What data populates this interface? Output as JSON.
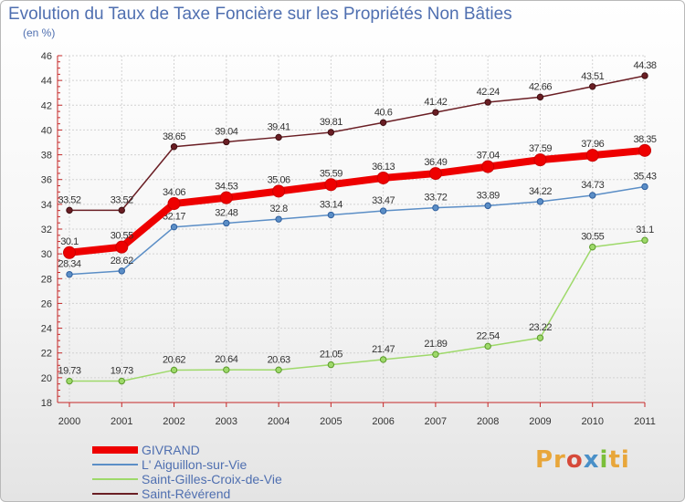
{
  "chart_data": {
    "type": "line",
    "title": "Evolution du Taux de Taxe Foncière sur les Propriétés Non Bâties",
    "ylabel": "(en %)",
    "xlabel": "",
    "ylim": [
      18,
      46
    ],
    "yticks": [
      18,
      20,
      22,
      24,
      26,
      28,
      30,
      32,
      34,
      36,
      38,
      40,
      42,
      44,
      46
    ],
    "categories": [
      "2000",
      "2001",
      "2002",
      "2003",
      "2004",
      "2005",
      "2006",
      "2007",
      "2008",
      "2009",
      "2010",
      "2011"
    ],
    "series": [
      {
        "name": "Saint-Révérend",
        "color": "#6a1e24",
        "values": [
          33.52,
          33.52,
          38.65,
          39.04,
          39.41,
          39.81,
          40.6,
          41.42,
          42.24,
          42.66,
          43.51,
          44.38
        ],
        "labels": [
          "33.52",
          "33.52",
          "38.65",
          "39.04",
          "39.41",
          "39.81",
          "40.6",
          "41.42",
          "42.24",
          "42.66",
          "43.51",
          "44.38"
        ]
      },
      {
        "name": "L' Aiguillon-sur-Vie",
        "color": "#5b8ec6",
        "values": [
          28.34,
          28.62,
          32.17,
          32.48,
          32.8,
          33.14,
          33.47,
          33.72,
          33.89,
          34.22,
          34.73,
          35.43
        ],
        "labels": [
          "28.34",
          "28.62",
          "32.17",
          "32.48",
          "32.8",
          "33.14",
          "33.47",
          "33.72",
          "33.89",
          "34.22",
          "34.73",
          "35.43"
        ]
      },
      {
        "name": "Saint-Gilles-Croix-de-Vie",
        "color": "#9ed96a",
        "values": [
          19.73,
          19.73,
          20.62,
          20.64,
          20.63,
          21.05,
          21.47,
          21.89,
          22.54,
          23.22,
          30.55,
          31.1
        ],
        "labels": [
          "19.73",
          "19.73",
          "20.62",
          "20.64",
          "20.63",
          "21.05",
          "21.47",
          "21.89",
          "22.54",
          "23.22",
          "30.55",
          "31.1"
        ]
      },
      {
        "name": "GIVRAND",
        "color": "#ee0000",
        "values": [
          30.1,
          30.55,
          34.06,
          34.53,
          35.06,
          35.59,
          36.13,
          36.49,
          37.04,
          37.59,
          37.96,
          38.35
        ],
        "labels": [
          "30.1",
          "30.55",
          "34.06",
          "34.53",
          "35.06",
          "35.59",
          "36.13",
          "36.49",
          "37.04",
          "37.59",
          "37.96",
          "38.35"
        ]
      }
    ],
    "legend": [
      "GIVRAND",
      "L' Aiguillon-sur-Vie",
      "Saint-Gilles-Croix-de-Vie",
      "Saint-Révérend"
    ]
  },
  "logo": {
    "p1": "Pr",
    "p2": "o",
    "p3": "x",
    "p4": "i",
    "p5": "ti"
  }
}
